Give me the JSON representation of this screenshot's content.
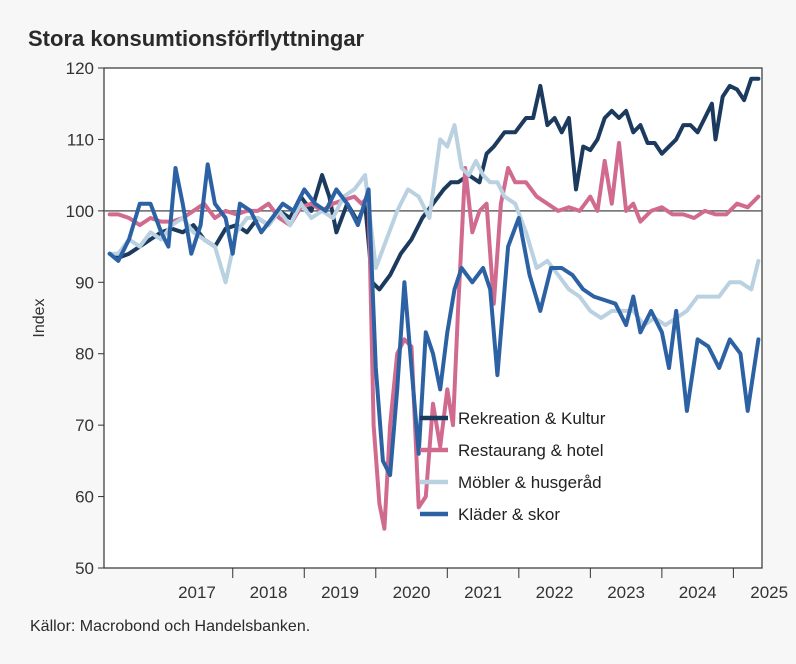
{
  "chart_data": {
    "type": "line",
    "title": "Stora konsumtionsförflyttningar",
    "xlabel": "",
    "ylabel": "Index",
    "ylim": [
      50,
      120
    ],
    "xlim": [
      2016.2,
      2025.4
    ],
    "yticks": [
      50,
      60,
      70,
      80,
      90,
      100,
      110,
      120
    ],
    "year_labels": [
      "2017",
      "2018",
      "2019",
      "2020",
      "2021",
      "2022",
      "2023",
      "2024",
      "2025"
    ],
    "reference_line": 100,
    "legend_placement": "lower-center",
    "source": "Källor: Macrobond och Handelsbanken.",
    "series": [
      {
        "name": "Rekreation & Kultur",
        "color": "#1c3a5e",
        "x": [
          2016.28,
          2016.42,
          2016.55,
          2016.7,
          2016.85,
          2017.0,
          2017.15,
          2017.3,
          2017.45,
          2017.6,
          2017.75,
          2017.9,
          2018.05,
          2018.2,
          2018.35,
          2018.5,
          2018.65,
          2018.8,
          2018.95,
          2019.1,
          2019.25,
          2019.35,
          2019.45,
          2019.6,
          2019.75,
          2019.85,
          2019.95,
          2020.05,
          2020.2,
          2020.35,
          2020.5,
          2020.65,
          2020.8,
          2020.95,
          2021.05,
          2021.15,
          2021.3,
          2021.45,
          2021.55,
          2021.65,
          2021.8,
          2021.95,
          2022.1,
          2022.2,
          2022.3,
          2022.4,
          2022.5,
          2022.6,
          2022.7,
          2022.8,
          2022.9,
          2023.0,
          2023.1,
          2023.2,
          2023.3,
          2023.4,
          2023.5,
          2023.6,
          2023.7,
          2023.8,
          2023.9,
          2024.0,
          2024.1,
          2024.2,
          2024.3,
          2024.4,
          2024.5,
          2024.6,
          2024.7,
          2024.75,
          2024.85,
          2024.95,
          2025.05,
          2025.15,
          2025.25,
          2025.35
        ],
        "values": [
          94,
          93.5,
          94,
          95,
          96,
          97,
          97.5,
          97,
          98,
          96,
          95,
          97.5,
          98,
          97,
          99,
          98,
          100,
          99,
          102,
          100,
          105,
          102,
          97,
          101,
          98.5,
          101,
          90,
          89,
          91,
          94,
          96,
          99,
          101,
          103,
          104,
          104,
          105,
          104,
          108,
          109,
          111,
          111,
          113,
          113,
          117.5,
          112,
          113,
          111,
          113,
          103,
          109,
          108.5,
          110,
          113,
          114,
          113,
          114,
          111,
          112,
          109.5,
          109.5,
          108,
          109,
          110,
          112,
          112,
          111,
          113,
          115,
          110,
          116,
          117.5,
          117,
          115.5,
          118.5,
          118.5
        ]
      },
      {
        "name": "Restaurang & hotel",
        "color": "#d06b8f",
        "x": [
          2016.28,
          2016.4,
          2016.55,
          2016.7,
          2016.85,
          2017.0,
          2017.15,
          2017.3,
          2017.45,
          2017.6,
          2017.75,
          2017.9,
          2018.05,
          2018.2,
          2018.35,
          2018.5,
          2018.65,
          2018.8,
          2018.95,
          2019.1,
          2019.25,
          2019.4,
          2019.55,
          2019.7,
          2019.8,
          2019.9,
          2019.97,
          2020.05,
          2020.12,
          2020.2,
          2020.3,
          2020.4,
          2020.5,
          2020.6,
          2020.7,
          2020.8,
          2020.9,
          2021.0,
          2021.08,
          2021.15,
          2021.25,
          2021.35,
          2021.45,
          2021.55,
          2021.65,
          2021.75,
          2021.85,
          2021.95,
          2022.1,
          2022.25,
          2022.4,
          2022.55,
          2022.7,
          2022.85,
          2023.0,
          2023.1,
          2023.2,
          2023.3,
          2023.4,
          2023.5,
          2023.6,
          2023.7,
          2023.85,
          2024.0,
          2024.15,
          2024.3,
          2024.45,
          2024.6,
          2024.75,
          2024.9,
          2025.05,
          2025.2,
          2025.35
        ],
        "values": [
          99.5,
          99.5,
          99,
          98,
          99,
          98.5,
          98.5,
          99,
          100,
          101,
          99,
          100,
          99.5,
          100,
          100,
          101,
          99,
          98,
          100.5,
          101,
          100,
          101,
          101.5,
          102,
          101,
          102,
          70,
          59,
          55.5,
          70,
          80,
          82,
          81,
          58.5,
          60,
          73,
          67,
          75,
          70,
          86,
          106,
          97,
          100,
          101,
          87,
          101,
          106,
          104,
          104,
          102,
          101,
          100,
          100.5,
          100,
          102,
          100,
          107,
          101,
          109.5,
          100,
          101,
          98.5,
          100,
          100.5,
          99.5,
          99.5,
          99,
          100,
          99.5,
          99.5,
          101,
          100.5,
          102
        ]
      },
      {
        "name": "Möbler & husgeråd",
        "color": "#b9d1e0",
        "x": [
          2016.28,
          2016.4,
          2016.55,
          2016.7,
          2016.85,
          2017.0,
          2017.15,
          2017.3,
          2017.45,
          2017.6,
          2017.75,
          2017.9,
          2018.05,
          2018.2,
          2018.35,
          2018.5,
          2018.65,
          2018.8,
          2018.95,
          2019.1,
          2019.25,
          2019.4,
          2019.55,
          2019.7,
          2019.85,
          2020.0,
          2020.15,
          2020.3,
          2020.45,
          2020.6,
          2020.75,
          2020.9,
          2021.0,
          2021.1,
          2021.2,
          2021.3,
          2021.4,
          2021.5,
          2021.6,
          2021.7,
          2021.8,
          2021.95,
          2022.1,
          2022.25,
          2022.4,
          2022.55,
          2022.7,
          2022.85,
          2023.0,
          2023.15,
          2023.3,
          2023.45,
          2023.6,
          2023.75,
          2023.9,
          2024.05,
          2024.2,
          2024.35,
          2024.5,
          2024.65,
          2024.8,
          2024.95,
          2025.1,
          2025.25,
          2025.35
        ],
        "values": [
          94,
          94,
          96,
          95,
          97,
          96,
          98,
          99,
          97,
          96,
          95,
          90,
          97,
          99,
          99,
          98,
          100,
          98,
          101,
          99,
          100,
          99,
          102,
          103,
          105,
          92,
          96,
          100,
          103,
          102,
          99,
          110,
          109,
          112,
          106,
          105,
          107,
          105,
          104,
          104,
          102,
          101,
          97,
          92,
          93,
          91,
          89,
          88,
          86,
          85,
          86,
          86,
          86,
          84,
          85,
          84,
          85,
          86,
          88,
          88,
          88,
          90,
          90,
          89,
          93
        ]
      },
      {
        "name": "Kläder & skor",
        "color": "#2c62a4",
        "x": [
          2016.28,
          2016.4,
          2016.55,
          2016.7,
          2016.85,
          2017.0,
          2017.1,
          2017.2,
          2017.3,
          2017.42,
          2017.55,
          2017.65,
          2017.75,
          2017.9,
          2018.0,
          2018.1,
          2018.25,
          2018.4,
          2018.55,
          2018.7,
          2018.85,
          2019.0,
          2019.15,
          2019.3,
          2019.45,
          2019.6,
          2019.75,
          2019.9,
          2020.0,
          2020.1,
          2020.2,
          2020.3,
          2020.4,
          2020.5,
          2020.6,
          2020.7,
          2020.8,
          2020.9,
          2021.0,
          2021.1,
          2021.2,
          2021.35,
          2021.5,
          2021.6,
          2021.7,
          2021.85,
          2022.0,
          2022.15,
          2022.3,
          2022.45,
          2022.6,
          2022.75,
          2022.9,
          2023.05,
          2023.2,
          2023.35,
          2023.5,
          2023.6,
          2023.7,
          2023.85,
          2024.0,
          2024.1,
          2024.2,
          2024.35,
          2024.5,
          2024.65,
          2024.8,
          2024.95,
          2025.1,
          2025.2,
          2025.35
        ],
        "values": [
          94,
          93,
          96,
          101,
          101,
          97,
          95,
          106,
          101,
          94,
          98,
          106.5,
          101,
          99,
          94,
          101,
          100,
          97,
          99,
          101,
          100,
          103,
          101,
          100,
          103,
          101,
          98,
          103,
          78,
          65,
          63,
          75,
          90,
          78,
          66,
          83,
          80,
          75,
          83,
          89,
          92,
          90,
          92,
          89,
          77,
          95,
          99,
          91,
          86,
          92,
          92,
          91,
          89,
          88,
          87.5,
          87,
          84,
          88,
          83,
          86,
          83,
          78,
          86,
          72,
          82,
          81,
          78,
          82,
          80,
          72,
          82
        ]
      }
    ]
  }
}
